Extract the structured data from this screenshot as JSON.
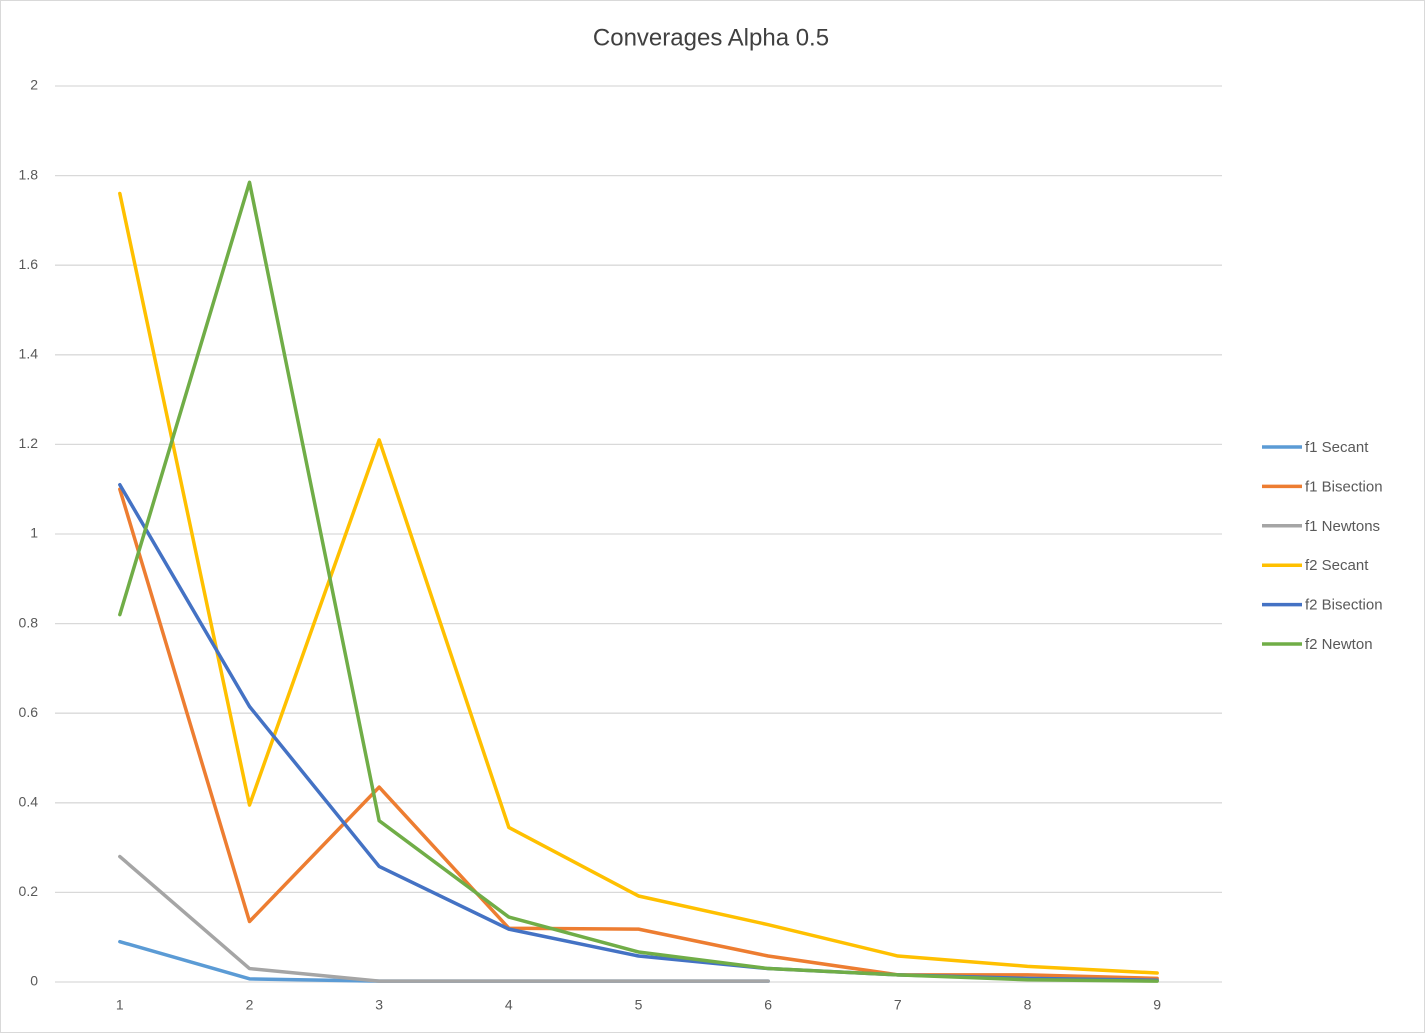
{
  "chart_data": {
    "type": "line",
    "title": "Converages Alpha 0.5",
    "categories": [
      "1",
      "2",
      "3",
      "4",
      "5",
      "6",
      "7",
      "8",
      "9"
    ],
    "series": [
      {
        "name": "f1 Secant",
        "color": "#5b9bd5",
        "values": [
          0.09,
          0.007,
          0.002,
          0.002,
          0.002,
          0.002,
          null,
          null,
          null
        ]
      },
      {
        "name": "f1 Bisection",
        "color": "#ed7d31",
        "values": [
          1.1,
          0.135,
          0.435,
          0.12,
          0.118,
          0.058,
          0.016,
          0.016,
          0.008
        ]
      },
      {
        "name": "f1 Newtons",
        "color": "#a5a5a5",
        "values": [
          0.28,
          0.03,
          0.002,
          0.002,
          0.002,
          0.002,
          null,
          null,
          null
        ]
      },
      {
        "name": "f2 Secant",
        "color": "#ffc000",
        "values": [
          1.76,
          0.395,
          1.21,
          0.345,
          0.192,
          0.128,
          0.058,
          0.035,
          0.02
        ]
      },
      {
        "name": "f2 Bisection",
        "color": "#4472c4",
        "values": [
          1.11,
          0.615,
          0.258,
          0.118,
          0.058,
          0.03,
          0.016,
          0.008,
          0.004
        ]
      },
      {
        "name": "f2 Newton",
        "color": "#70ad47",
        "values": [
          0.82,
          1.785,
          0.36,
          0.145,
          0.067,
          0.03,
          0.016,
          0.005,
          0.002
        ]
      }
    ],
    "ylim": [
      0,
      2
    ],
    "yticks": [
      0,
      0.2,
      0.4,
      0.6,
      0.8,
      1,
      1.2,
      1.4,
      1.6,
      1.8,
      2
    ],
    "grid": true,
    "legend": "right"
  }
}
